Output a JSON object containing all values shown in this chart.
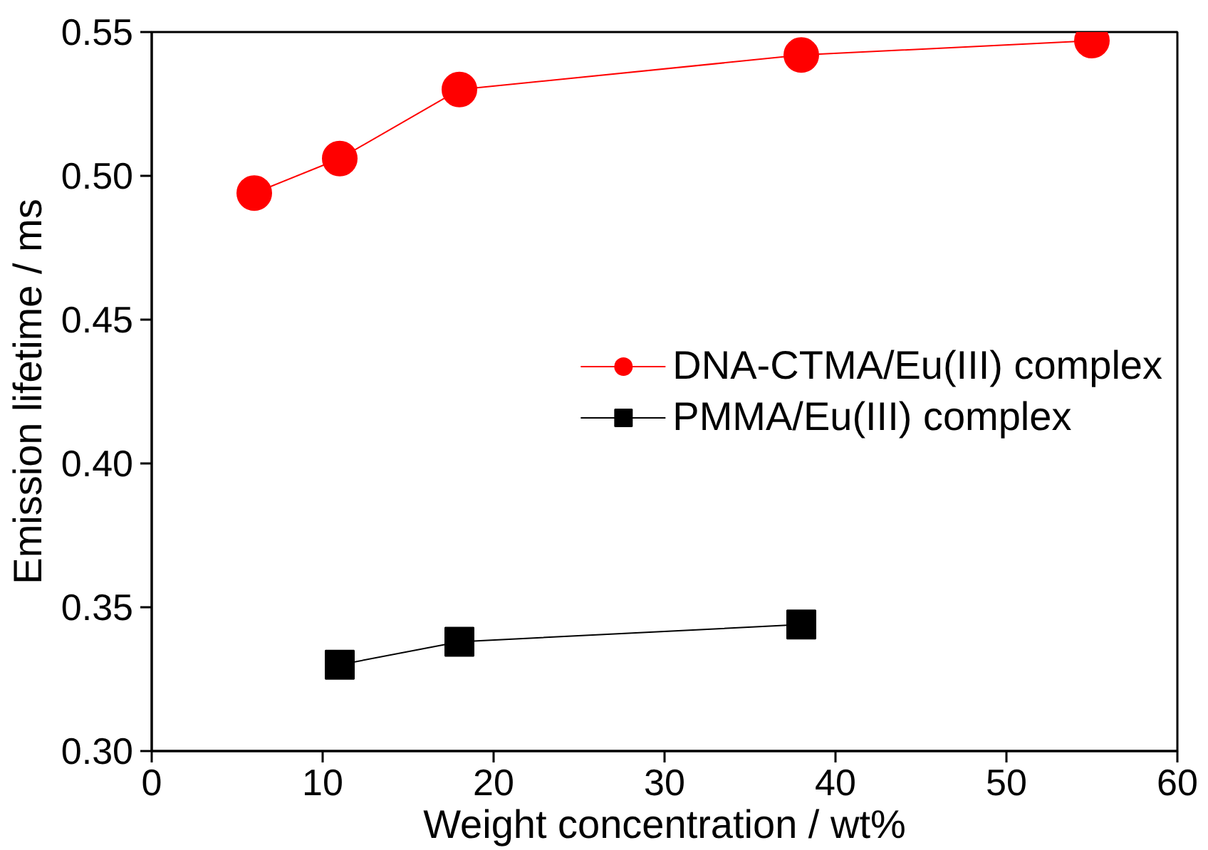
{
  "chart_data": {
    "type": "line",
    "xlabel": "Weight concentration / wt%",
    "ylabel": "Emission lifetime / ms",
    "xlim": [
      0,
      60
    ],
    "xticks": [
      0,
      10,
      20,
      30,
      40,
      50,
      60
    ],
    "ylim": [
      0.3,
      0.55
    ],
    "yticks": [
      {
        "value": 0.3,
        "label": "0.30"
      },
      {
        "value": 0.35,
        "label": "0.35"
      },
      {
        "value": 0.4,
        "label": "0.40"
      },
      {
        "value": 0.45,
        "label": "0.45"
      },
      {
        "value": 0.5,
        "label": "0.50"
      },
      {
        "value": 0.55,
        "label": "0.55"
      }
    ],
    "grid": false,
    "legend": "right",
    "line_style": "solid",
    "series": [
      {
        "name": "DNA-CTMA/Eu(III) complex",
        "color": "#ff0000",
        "marker": "circle",
        "x": [
          6,
          11,
          18,
          38,
          55
        ],
        "values": [
          0.494,
          0.506,
          0.53,
          0.542,
          0.547
        ]
      },
      {
        "name": "PMMA/Eu(III) complex",
        "color": "#000000",
        "marker": "square",
        "x": [
          11,
          18,
          38
        ],
        "values": [
          0.33,
          0.338,
          0.344
        ]
      }
    ]
  }
}
